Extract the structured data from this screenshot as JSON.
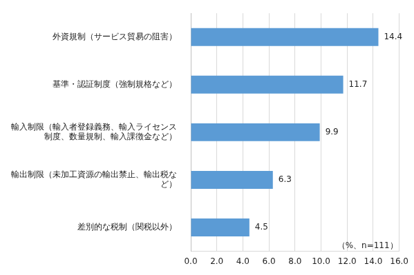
{
  "chart_data": {
    "type": "bar",
    "orientation": "horizontal",
    "categories": [
      "外資規制（サービス貿易の阻害）",
      "基準・認証制度（強制規格など）",
      "輸入制限（輸入者登録義務、輸入ライセンス制度、数量規制、輸入課徴金など）",
      "輸出制限（未加工資源の輸出禁止、輸出税など）",
      "差別的な税制（関税以外）"
    ],
    "values": [
      14.4,
      11.7,
      9.9,
      6.3,
      4.5
    ],
    "color": "#5b9bd5",
    "xlim": [
      0,
      16
    ],
    "xticks": [
      {
        "value": 0,
        "label": "0.0"
      },
      {
        "value": 2,
        "label": "2.0"
      },
      {
        "value": 4,
        "label": "4.0"
      },
      {
        "value": 6,
        "label": "6.0"
      },
      {
        "value": 8,
        "label": "8.0"
      },
      {
        "value": 10,
        "label": "10.0"
      },
      {
        "value": 12,
        "label": "12.0"
      },
      {
        "value": 14,
        "label": "14.0"
      },
      {
        "value": 16,
        "label": "16.0"
      }
    ],
    "annotation": "（%、n=111）",
    "grid": true,
    "data_labels": true
  }
}
